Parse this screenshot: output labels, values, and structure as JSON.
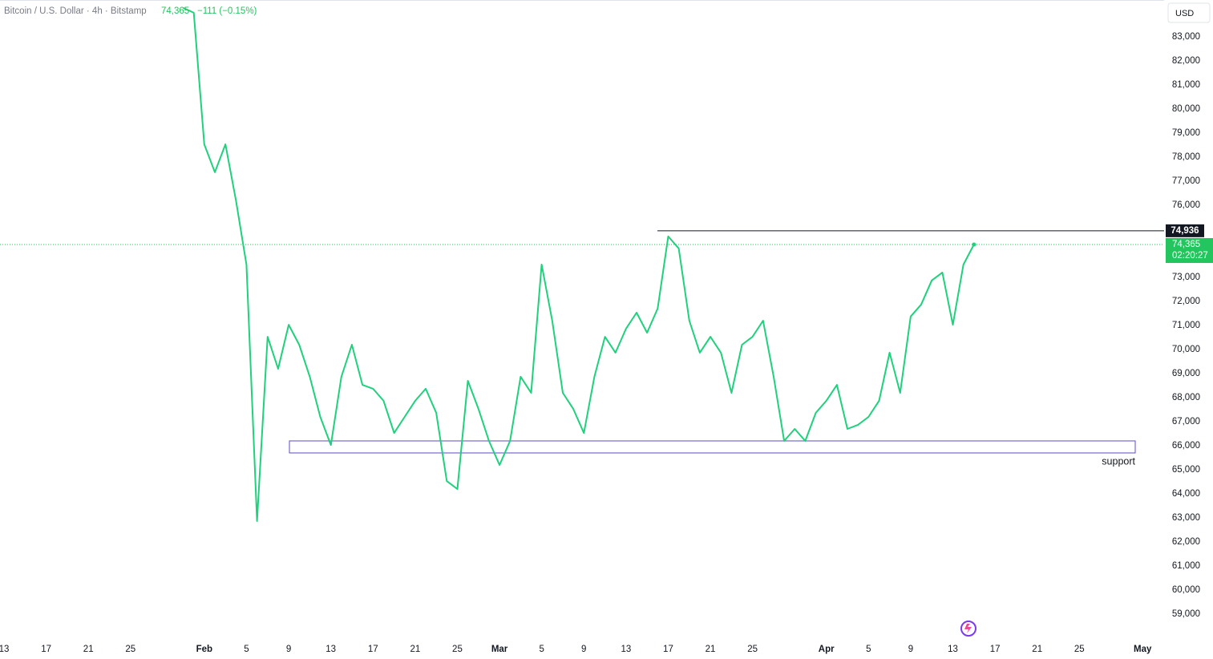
{
  "chart_data": {
    "type": "line",
    "title": "Bitcoin / U.S. Dollar · 4h · Bitstamp",
    "last_price": {
      "value": 74365,
      "label": "74,365"
    },
    "change": "−111 (−0.15%)",
    "countdown": "02:20:27",
    "currency": "USD",
    "color": "#1fd17d",
    "grid": false,
    "categories": [
      "13",
      null,
      null,
      null,
      "17",
      null,
      null,
      null,
      "21",
      null,
      null,
      null,
      "25",
      null,
      null,
      null,
      null,
      null,
      null,
      "Feb",
      null,
      null,
      null,
      "5",
      null,
      null,
      null,
      "9",
      null,
      null,
      null,
      "13",
      null,
      null,
      null,
      "17",
      null,
      null,
      null,
      "21",
      null,
      null,
      null,
      "25",
      null,
      null,
      null,
      "Mar",
      null,
      null,
      null,
      "5",
      null,
      null,
      null,
      "9",
      null,
      null,
      null,
      "13",
      null,
      null,
      null,
      "17",
      null,
      null,
      null,
      "21",
      null,
      null,
      null,
      "25",
      null,
      null,
      null,
      null,
      null,
      null,
      "Apr",
      null,
      null,
      null,
      "5",
      null,
      null,
      null,
      "9",
      null,
      null,
      null,
      "13",
      null,
      null,
      null,
      "17",
      null,
      null,
      null,
      "21",
      null,
      null,
      null,
      "25",
      null,
      null,
      null,
      null,
      null,
      "May"
    ],
    "values": [
      null,
      null,
      null,
      null,
      null,
      null,
      null,
      null,
      null,
      null,
      null,
      null,
      null,
      null,
      null,
      null,
      null,
      84200,
      84000,
      78530,
      77370,
      78530,
      76200,
      73530,
      62870,
      70530,
      69200,
      71030,
      70200,
      68870,
      67200,
      66030,
      68870,
      70200,
      68530,
      68370,
      67870,
      66530,
      67200,
      67870,
      68370,
      67370,
      64530,
      64200,
      68700,
      67530,
      66200,
      65200,
      66200,
      68870,
      68200,
      73530,
      71200,
      68200,
      67530,
      66530,
      68870,
      70530,
      69870,
      70870,
      71530,
      70700,
      71700,
      74700,
      74200,
      71200,
      69870,
      70530,
      69870,
      68200,
      70200,
      70530,
      71200,
      68870,
      66200,
      66700,
      66200,
      67370,
      67870,
      68530,
      66700,
      66870,
      67200,
      67870,
      69870,
      68200,
      71370,
      71870,
      72870,
      73200,
      71030,
      73530,
      74365,
      null,
      null,
      null,
      null,
      null,
      null,
      null,
      null,
      null,
      null,
      null,
      null,
      null,
      null,
      null,
      null
    ],
    "ylim": [
      58200,
      84530
    ],
    "yticks": [
      {
        "value": 83000,
        "label": "83,000"
      },
      {
        "value": 82000,
        "label": "82,000"
      },
      {
        "value": 81000,
        "label": "81,000"
      },
      {
        "value": 80000,
        "label": "80,000"
      },
      {
        "value": 79000,
        "label": "79,000"
      },
      {
        "value": 78000,
        "label": "78,000"
      },
      {
        "value": 77000,
        "label": "77,000"
      },
      {
        "value": 76000,
        "label": "76,000"
      },
      {
        "value": 73000,
        "label": "73,000"
      },
      {
        "value": 72000,
        "label": "72,000"
      },
      {
        "value": 71000,
        "label": "71,000"
      },
      {
        "value": 70000,
        "label": "70,000"
      },
      {
        "value": 69000,
        "label": "69,000"
      },
      {
        "value": 68000,
        "label": "68,000"
      },
      {
        "value": 67000,
        "label": "67,000"
      },
      {
        "value": 66000,
        "label": "66,000"
      },
      {
        "value": 65000,
        "label": "65,000"
      },
      {
        "value": 64000,
        "label": "64,000"
      },
      {
        "value": 63000,
        "label": "63,000"
      },
      {
        "value": 62000,
        "label": "62,000"
      },
      {
        "value": 61000,
        "label": "61,000"
      },
      {
        "value": 60000,
        "label": "60,000"
      },
      {
        "value": 59000,
        "label": "59,000"
      }
    ],
    "annotations": {
      "resistance": {
        "value": 74936,
        "label": "74,936"
      },
      "support": {
        "label": "support",
        "top": 66200,
        "bottom": 65700
      }
    }
  }
}
